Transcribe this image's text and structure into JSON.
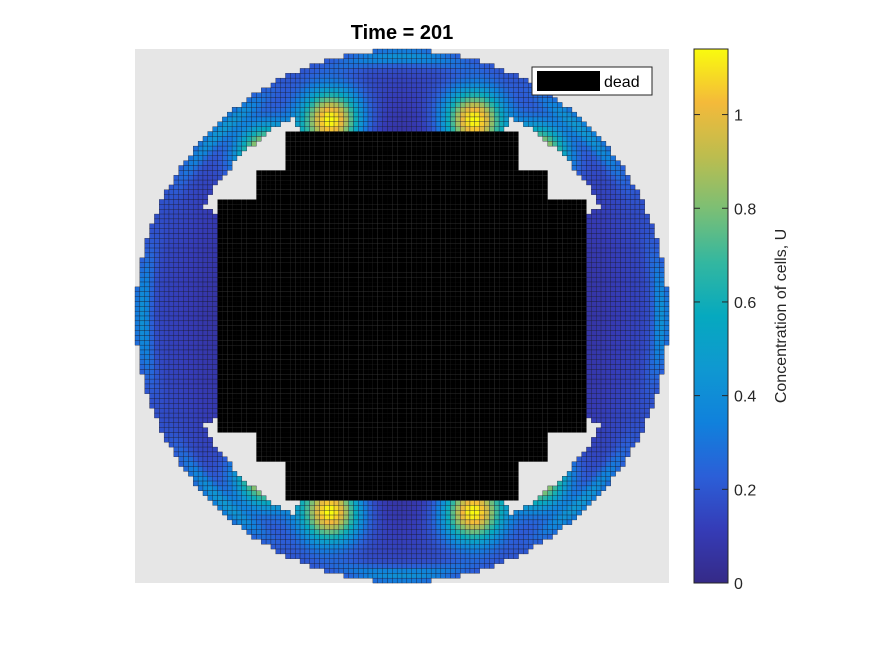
{
  "chart_data": {
    "type": "heatmap",
    "title": "Time = 201",
    "colorbar": {
      "label": "Concentration of cells, U",
      "range": [
        0,
        1.14
      ],
      "ticks": [
        0,
        0.2,
        0.4,
        0.6,
        0.8,
        1
      ],
      "tick_labels": [
        "0",
        "0.2",
        "0.4",
        "0.6",
        "0.8",
        "1"
      ],
      "colormap": "parula"
    },
    "legend": {
      "entries": [
        "dead"
      ],
      "placement": "top-right",
      "swatch_color": "#000000"
    },
    "background_color": "#e6e6e6",
    "dead_color": "#000000",
    "grid_cells": 110,
    "domain": {
      "outer_radius": 0.997,
      "dead_core": "four-lobed cross",
      "hot_spots": 8
    }
  }
}
